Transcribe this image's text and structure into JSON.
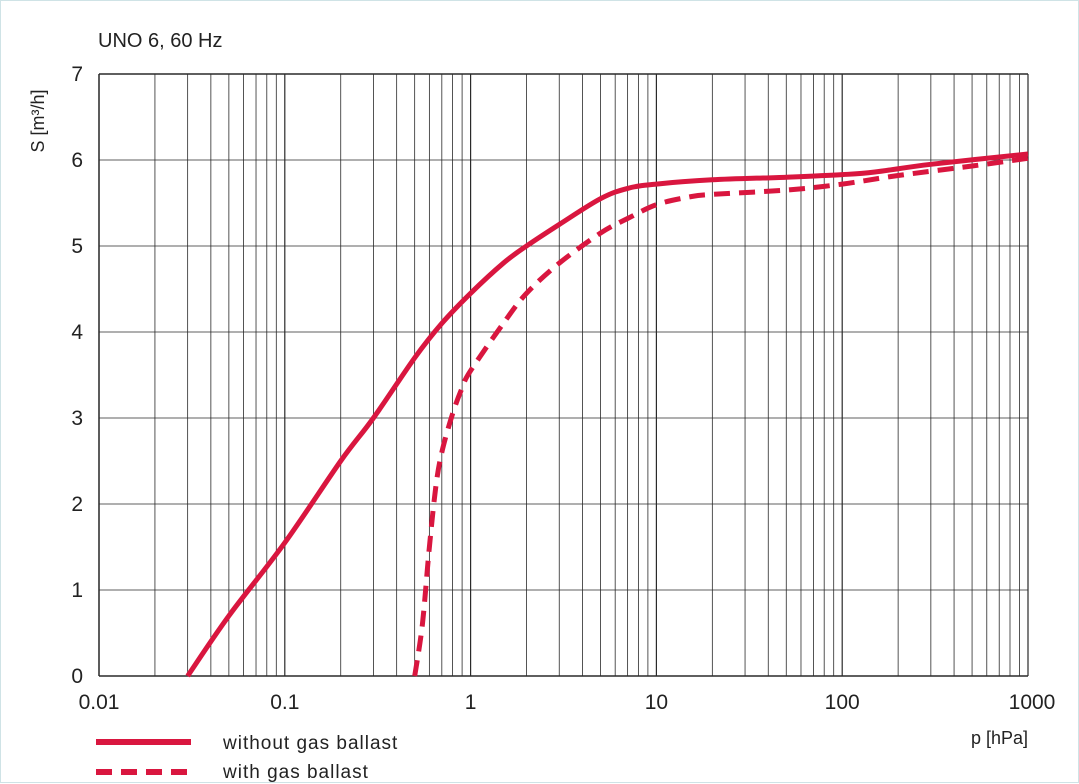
{
  "chart_data": {
    "type": "line",
    "title": "UNO 6, 60 Hz",
    "ylabel": "S [m³/h]",
    "xlabel": "p [hPa]",
    "xscale": "log",
    "xlim": [
      0.01,
      1000
    ],
    "ylim": [
      0,
      7
    ],
    "grid": true,
    "legend_position": "bottom-left",
    "x_ticks": [
      {
        "value": 0.01,
        "label": "0.01"
      },
      {
        "value": 0.1,
        "label": "0.1"
      },
      {
        "value": 1,
        "label": "1"
      },
      {
        "value": 10,
        "label": "10"
      },
      {
        "value": 100,
        "label": "100"
      },
      {
        "value": 1000,
        "label": "1000"
      }
    ],
    "y_ticks": [
      {
        "value": 0,
        "label": "0"
      },
      {
        "value": 1,
        "label": "1"
      },
      {
        "value": 2,
        "label": "2"
      },
      {
        "value": 3,
        "label": "3"
      },
      {
        "value": 4,
        "label": "4"
      },
      {
        "value": 5,
        "label": "5"
      },
      {
        "value": 6,
        "label": "6"
      },
      {
        "value": 7,
        "label": "7"
      }
    ],
    "series": [
      {
        "name": "without gas ballast",
        "style": "solid",
        "color": "#d9163f",
        "points": [
          [
            0.03,
            0.0
          ],
          [
            0.05,
            0.7
          ],
          [
            0.1,
            1.55
          ],
          [
            0.2,
            2.5
          ],
          [
            0.3,
            3.0
          ],
          [
            0.5,
            3.7
          ],
          [
            0.7,
            4.1
          ],
          [
            1.0,
            4.45
          ],
          [
            1.5,
            4.8
          ],
          [
            2.0,
            5.0
          ],
          [
            3.0,
            5.25
          ],
          [
            5.0,
            5.55
          ],
          [
            7.0,
            5.67
          ],
          [
            10.0,
            5.72
          ],
          [
            20.0,
            5.77
          ],
          [
            50.0,
            5.8
          ],
          [
            100.0,
            5.83
          ],
          [
            150.0,
            5.86
          ],
          [
            300.0,
            5.95
          ],
          [
            1000.0,
            6.07
          ]
        ]
      },
      {
        "name": "with gas ballast",
        "style": "dashed",
        "color": "#d9163f",
        "points": [
          [
            0.5,
            0.0
          ],
          [
            0.55,
            0.6
          ],
          [
            0.6,
            1.5
          ],
          [
            0.65,
            2.2
          ],
          [
            0.7,
            2.6
          ],
          [
            0.8,
            3.05
          ],
          [
            0.9,
            3.35
          ],
          [
            1.0,
            3.55
          ],
          [
            1.5,
            4.1
          ],
          [
            2.0,
            4.45
          ],
          [
            3.0,
            4.8
          ],
          [
            5.0,
            5.15
          ],
          [
            7.0,
            5.32
          ],
          [
            10.0,
            5.48
          ],
          [
            15.0,
            5.57
          ],
          [
            20.0,
            5.6
          ],
          [
            50.0,
            5.65
          ],
          [
            100.0,
            5.72
          ],
          [
            200.0,
            5.82
          ],
          [
            500.0,
            5.93
          ],
          [
            1000.0,
            6.02
          ]
        ]
      }
    ]
  }
}
